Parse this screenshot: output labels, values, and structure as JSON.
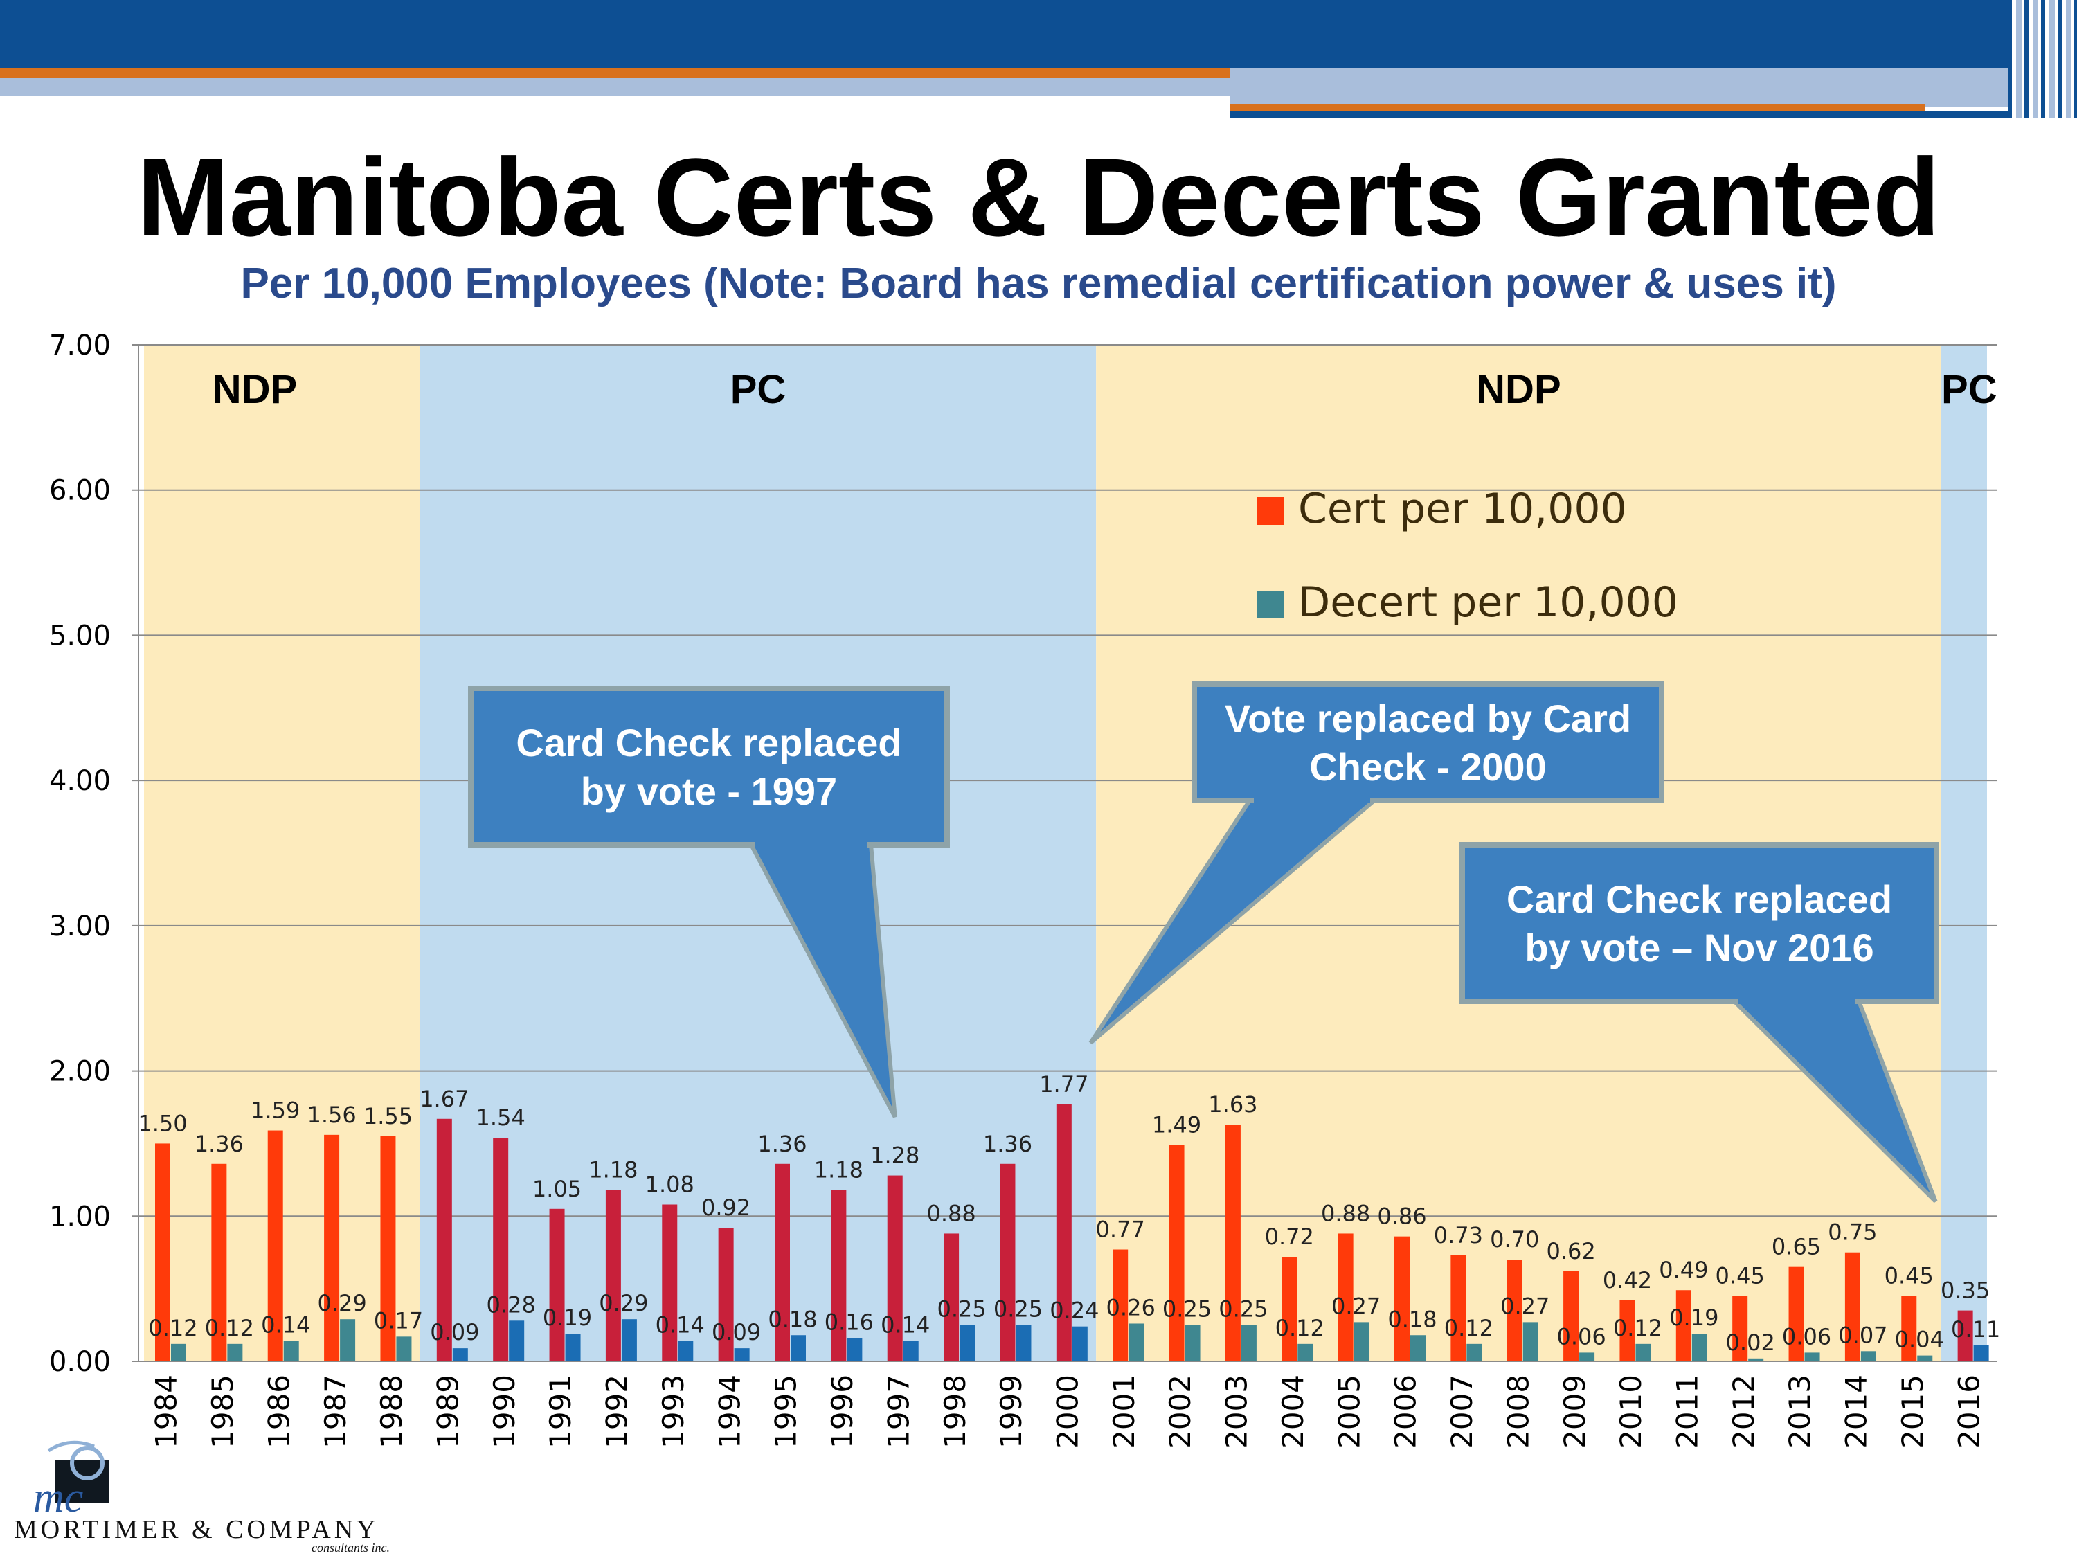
{
  "header": {
    "title": "Manitoba Certs & Decerts Granted",
    "subtitle": "Per 10,000 Employees (Note: Board has remedial certification power & uses it)"
  },
  "chart_data": {
    "type": "bar",
    "categories": [
      "1984",
      "1985",
      "1986",
      "1987",
      "1988",
      "1989",
      "1990",
      "1991",
      "1992",
      "1993",
      "1994",
      "1995",
      "1996",
      "1997",
      "1998",
      "1999",
      "2000",
      "2001",
      "2002",
      "2003",
      "2004",
      "2005",
      "2006",
      "2007",
      "2008",
      "2009",
      "2010",
      "2011",
      "2012",
      "2013",
      "2014",
      "2015",
      "2016"
    ],
    "series": [
      {
        "name": "Cert per 10,000",
        "values": [
          1.5,
          1.36,
          1.59,
          1.56,
          1.55,
          1.67,
          1.54,
          1.05,
          1.18,
          1.08,
          0.92,
          1.36,
          1.18,
          1.28,
          0.88,
          1.36,
          1.77,
          0.77,
          1.49,
          1.63,
          0.72,
          0.88,
          0.86,
          0.73,
          0.7,
          0.62,
          0.42,
          0.49,
          0.45,
          0.65,
          0.75,
          0.45,
          0.35
        ]
      },
      {
        "name": "Decert per 10,000",
        "values": [
          0.12,
          0.12,
          0.14,
          0.29,
          0.17,
          0.09,
          0.28,
          0.19,
          0.29,
          0.14,
          0.09,
          0.18,
          0.16,
          0.14,
          0.25,
          0.25,
          0.24,
          0.26,
          0.25,
          0.25,
          0.12,
          0.27,
          0.18,
          0.12,
          0.27,
          0.06,
          0.12,
          0.19,
          0.02,
          0.06,
          0.07,
          0.04,
          0.11
        ]
      }
    ],
    "value_labels": {
      "cert": [
        "1.50",
        "1.36",
        "1.59",
        "1.56",
        "1.55",
        "1.67",
        "1.54",
        "1.05",
        "1.18",
        "1.08",
        "0.92",
        "1.36",
        "1.18",
        "1.28",
        "0.88",
        "1.36",
        "1.77",
        "0.77",
        "1.49",
        "1.63",
        "0.72",
        "0.88",
        "0.86",
        "0.73",
        "0.70",
        "0.62",
        "0.42",
        "0.49",
        "0.45",
        "0.65",
        "0.75",
        "0.45",
        "0.35"
      ],
      "decert": [
        "0.12",
        "0.12",
        "0.14",
        "0.29",
        "0.17",
        "0.09",
        "0.28",
        "0.19",
        "0.29",
        "0.14",
        "0.09",
        "0.18",
        "0.16",
        "0.14",
        "0.25",
        "0.25",
        "0.24",
        "0.26",
        "0.25",
        "0.25",
        "0.12",
        "0.27",
        "0.18",
        "0.12",
        "0.27",
        "0.06",
        "0.12",
        "0.19",
        "0.02",
        "0.06",
        "0.07",
        "0.04",
        "0.11"
      ]
    },
    "yticks": [
      "0.00",
      "1.00",
      "2.00",
      "3.00",
      "4.00",
      "5.00",
      "6.00",
      "7.00"
    ],
    "ylim": [
      0,
      7
    ],
    "grid": true,
    "legend_position": "upper-right",
    "periods": [
      {
        "label": "NDP",
        "start": "1984",
        "end": "1988",
        "color": "#fdebbd"
      },
      {
        "label": "PC",
        "start": "1989",
        "end": "2000",
        "color": "#c0dbef"
      },
      {
        "label": "NDP",
        "start": "2001",
        "end": "2015",
        "color": "#fdebbd"
      },
      {
        "label": "PC",
        "start": "2016",
        "end": "2016",
        "color": "#c0dbef"
      }
    ],
    "colors": {
      "cert_ndp": "#ff3a0a",
      "cert_pc": "#c8203a",
      "decert_ndp": "#3f8790",
      "decert_pc": "#1b6db4",
      "legend_text": "#3c2c0c",
      "callout_fill": "#3d80c0",
      "callout_border": "#8ea3a8"
    },
    "annotations": [
      {
        "text_lines": [
          "Card Check replaced",
          "by vote - 1997"
        ],
        "points_to": "1997"
      },
      {
        "text_lines": [
          "Vote replaced by Card",
          "Check - 2000"
        ],
        "points_to": "2000"
      },
      {
        "text_lines": [
          "Card Check replaced",
          "by vote – Nov 2016"
        ],
        "points_to": "2016"
      }
    ]
  },
  "logo": {
    "mark": "mc",
    "name": "MORTIMER & COMPANY",
    "tagline": "consultants inc."
  }
}
